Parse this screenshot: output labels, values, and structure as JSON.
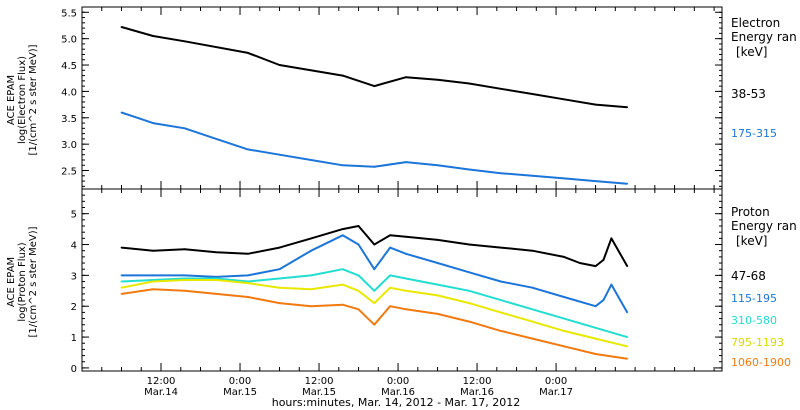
{
  "chart_data": [
    {
      "type": "line",
      "panel": "electron",
      "ylabel_lines": [
        "ACE EPAM",
        "log(Electron Flux)",
        "[1/(cm^2 s ster MeV)]"
      ],
      "ylim": [
        2.15,
        5.6
      ],
      "yticks": [
        2.5,
        3.0,
        3.5,
        4.0,
        4.5,
        5.0,
        5.5
      ],
      "ytick_labels": [
        "2.5",
        "3.0",
        "3.5",
        "4.0",
        "4.5",
        "5.0",
        "5.5"
      ],
      "legend_title_lines": [
        "Electron",
        "Energy ran",
        "[keV]"
      ],
      "series": [
        {
          "name": "38-53",
          "color": "#000000",
          "x": [
            0,
            0.2,
            0.4,
            0.8,
            1.0,
            1.4,
            1.6,
            1.8,
            2.0,
            2.2,
            2.4,
            2.6,
            2.8,
            3.0,
            3.2
          ],
          "values": [
            5.22,
            5.05,
            4.95,
            4.73,
            4.5,
            4.3,
            4.1,
            4.27,
            4.22,
            4.15,
            4.05,
            3.95,
            3.85,
            3.75,
            3.7
          ]
        },
        {
          "name": "175-315",
          "color": "#1c75d8",
          "x": [
            0,
            0.2,
            0.4,
            0.6,
            0.8,
            1.0,
            1.2,
            1.4,
            1.6,
            1.8,
            2.0,
            2.2,
            2.4,
            2.6,
            2.8,
            3.0,
            3.2
          ],
          "values": [
            3.6,
            3.4,
            3.3,
            3.1,
            2.9,
            2.8,
            2.7,
            2.6,
            2.57,
            2.66,
            2.6,
            2.52,
            2.45,
            2.4,
            2.35,
            2.3,
            2.25
          ]
        }
      ]
    },
    {
      "type": "line",
      "panel": "proton",
      "ylabel_lines": [
        "ACE EPAM",
        "log(Proton Flux)",
        "[1/(cm^2 s ster MeV)]"
      ],
      "ylim": [
        -0.1,
        5.8
      ],
      "yticks": [
        0,
        1,
        2,
        3,
        4,
        5
      ],
      "ytick_labels": [
        "0",
        "1",
        "2",
        "3",
        "4",
        "5"
      ],
      "legend_title_lines": [
        "Proton",
        "Energy ran",
        "[keV]"
      ],
      "series": [
        {
          "name": "47-68",
          "color": "#000000",
          "x": [
            0,
            0.2,
            0.4,
            0.6,
            0.8,
            1.0,
            1.2,
            1.4,
            1.5,
            1.6,
            1.7,
            1.8,
            2.0,
            2.2,
            2.4,
            2.6,
            2.8,
            2.9,
            3.0,
            3.05,
            3.1,
            3.2
          ],
          "values": [
            3.9,
            3.8,
            3.85,
            3.75,
            3.7,
            3.9,
            4.2,
            4.5,
            4.6,
            4.0,
            4.3,
            4.25,
            4.15,
            4.0,
            3.9,
            3.8,
            3.6,
            3.4,
            3.3,
            3.5,
            4.2,
            3.3
          ]
        },
        {
          "name": "115-195",
          "color": "#1c75d8",
          "x": [
            0,
            0.2,
            0.4,
            0.6,
            0.8,
            1.0,
            1.2,
            1.4,
            1.5,
            1.6,
            1.7,
            1.8,
            2.0,
            2.2,
            2.4,
            2.6,
            2.8,
            3.0,
            3.05,
            3.1,
            3.2
          ],
          "values": [
            3.0,
            3.0,
            3.0,
            2.95,
            3.0,
            3.2,
            3.8,
            4.3,
            4.0,
            3.2,
            3.9,
            3.7,
            3.4,
            3.1,
            2.8,
            2.6,
            2.3,
            2.0,
            2.2,
            2.7,
            1.8
          ]
        },
        {
          "name": "310-580",
          "color": "#22ddd0",
          "x": [
            0,
            0.2,
            0.4,
            0.6,
            0.8,
            1.0,
            1.2,
            1.4,
            1.5,
            1.6,
            1.7,
            1.8,
            2.0,
            2.2,
            2.4,
            2.6,
            2.8,
            3.0,
            3.2
          ],
          "values": [
            2.8,
            2.85,
            2.9,
            2.9,
            2.8,
            2.9,
            3.0,
            3.2,
            3.0,
            2.5,
            3.0,
            2.9,
            2.7,
            2.5,
            2.2,
            1.9,
            1.6,
            1.3,
            1.0
          ]
        },
        {
          "name": "795-1193",
          "color": "#e8e800",
          "x": [
            0,
            0.2,
            0.4,
            0.6,
            0.8,
            1.0,
            1.2,
            1.4,
            1.5,
            1.6,
            1.7,
            1.8,
            2.0,
            2.2,
            2.4,
            2.6,
            2.8,
            3.0,
            3.2
          ],
          "values": [
            2.6,
            2.8,
            2.85,
            2.85,
            2.75,
            2.6,
            2.55,
            2.7,
            2.5,
            2.1,
            2.6,
            2.5,
            2.35,
            2.1,
            1.8,
            1.5,
            1.2,
            0.95,
            0.7
          ]
        },
        {
          "name": "1060-1900",
          "color": "#f07a10",
          "x": [
            0,
            0.2,
            0.4,
            0.6,
            0.8,
            1.0,
            1.2,
            1.4,
            1.5,
            1.6,
            1.7,
            1.8,
            2.0,
            2.2,
            2.4,
            2.6,
            2.8,
            3.0,
            3.2
          ],
          "values": [
            2.4,
            2.55,
            2.5,
            2.4,
            2.3,
            2.1,
            2.0,
            2.05,
            1.9,
            1.4,
            2.0,
            1.9,
            1.75,
            1.5,
            1.2,
            0.95,
            0.7,
            0.45,
            0.3
          ]
        }
      ]
    }
  ],
  "x_axis": {
    "xlim": [
      -0.25,
      3.8
    ],
    "major_ticks": [
      0.25,
      0.75,
      1.25,
      1.75,
      2.25,
      2.75
    ],
    "minor_step": 0.125,
    "tick_time_labels": [
      "12:00",
      "0:00",
      "12:00",
      "0:00",
      "12:00",
      "0:00"
    ],
    "tick_date_labels": [
      "Mar.14",
      "Mar.15",
      "Mar.15",
      "Mar.16",
      "Mar.16",
      "Mar.17"
    ],
    "title": "hours:minutes, Mar. 14, 2012 - Mar. 17, 2012"
  }
}
